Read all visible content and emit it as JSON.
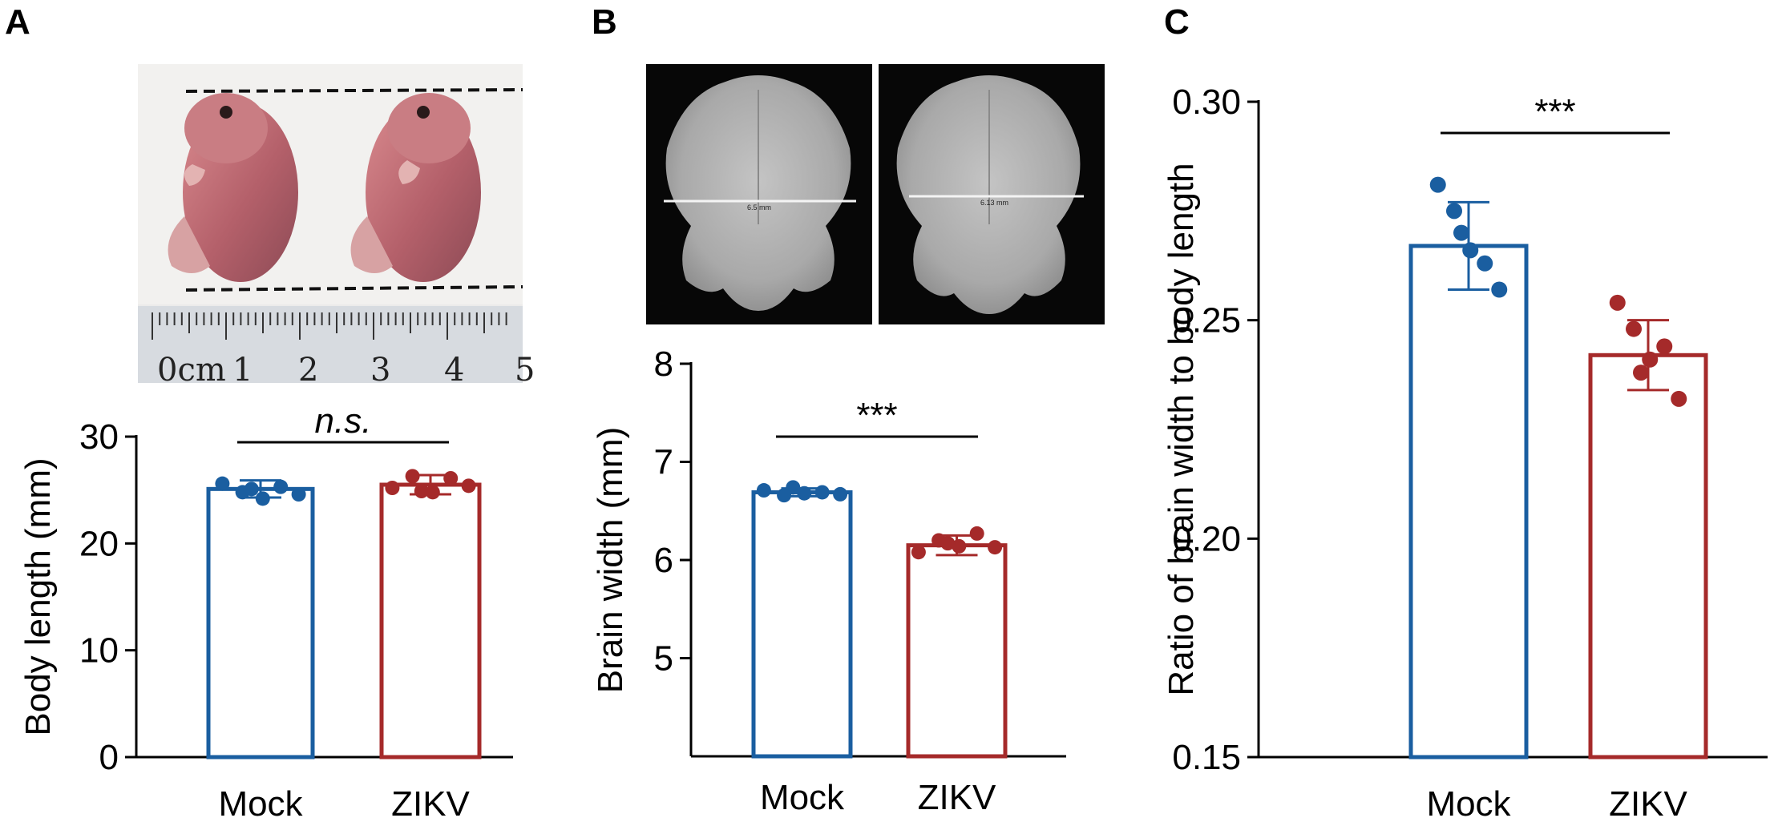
{
  "colors": {
    "mock": "#1a5ea0",
    "zikv": "#a52a2a",
    "axis": "#000000"
  },
  "panels": {
    "a": {
      "letter": "A"
    },
    "b": {
      "letter": "B"
    },
    "c": {
      "letter": "C"
    }
  },
  "photo_a": {
    "ruler_labels": [
      "0cm",
      "1",
      "2",
      "3",
      "4",
      "5"
    ]
  },
  "photo_b": {
    "left_scale_text": "6.5 mm",
    "right_scale_text": "6.13 mm"
  },
  "chart_data": [
    {
      "id": "a",
      "type": "bar",
      "title": "",
      "xlabel": "",
      "ylabel": "Body length (mm)",
      "categories": [
        "Mock",
        "ZIKV"
      ],
      "ylim": [
        0,
        30
      ],
      "yticks": [
        0,
        10,
        20,
        30
      ],
      "ytick_labels": [
        "0",
        "10",
        "20",
        "30"
      ],
      "values": [
        25.1,
        25.5
      ],
      "errors": [
        0.8,
        0.9
      ],
      "points": [
        [
          25.6,
          24.8,
          24.2,
          25.3,
          24.6,
          25.1
        ],
        [
          25.2,
          26.3,
          24.8,
          26.1,
          25.4,
          24.9
        ]
      ],
      "significance": "n.s.",
      "sig_italic": true
    },
    {
      "id": "b",
      "type": "bar",
      "title": "",
      "xlabel": "",
      "ylabel": "Brain width (mm)",
      "categories": [
        "Mock",
        "ZIKV"
      ],
      "ylim": [
        4,
        8
      ],
      "yticks": [
        5,
        6,
        7,
        8
      ],
      "ytick_labels": [
        "5",
        "6",
        "7",
        "8"
      ],
      "values": [
        6.69,
        6.15
      ],
      "errors": [
        0.04,
        0.1
      ],
      "points": [
        [
          6.71,
          6.66,
          6.68,
          6.69,
          6.67,
          6.74
        ],
        [
          6.08,
          6.2,
          6.14,
          6.27,
          6.13,
          6.17
        ]
      ],
      "significance": "***",
      "sig_italic": false
    },
    {
      "id": "c",
      "type": "bar",
      "title": "",
      "xlabel": "",
      "ylabel": "Ratio of brain width to body length",
      "categories": [
        "Mock",
        "ZIKV"
      ],
      "ylim": [
        0.15,
        0.3
      ],
      "yticks": [
        0.15,
        0.2,
        0.25,
        0.3
      ],
      "ytick_labels": [
        "0.15",
        "0.20",
        "0.25",
        "0.30"
      ],
      "values": [
        0.267,
        0.242
      ],
      "errors": [
        0.01,
        0.008
      ],
      "points": [
        [
          0.281,
          0.275,
          0.266,
          0.263,
          0.257,
          0.27
        ],
        [
          0.254,
          0.248,
          0.241,
          0.244,
          0.232,
          0.238
        ]
      ],
      "significance": "***",
      "sig_italic": false
    }
  ]
}
